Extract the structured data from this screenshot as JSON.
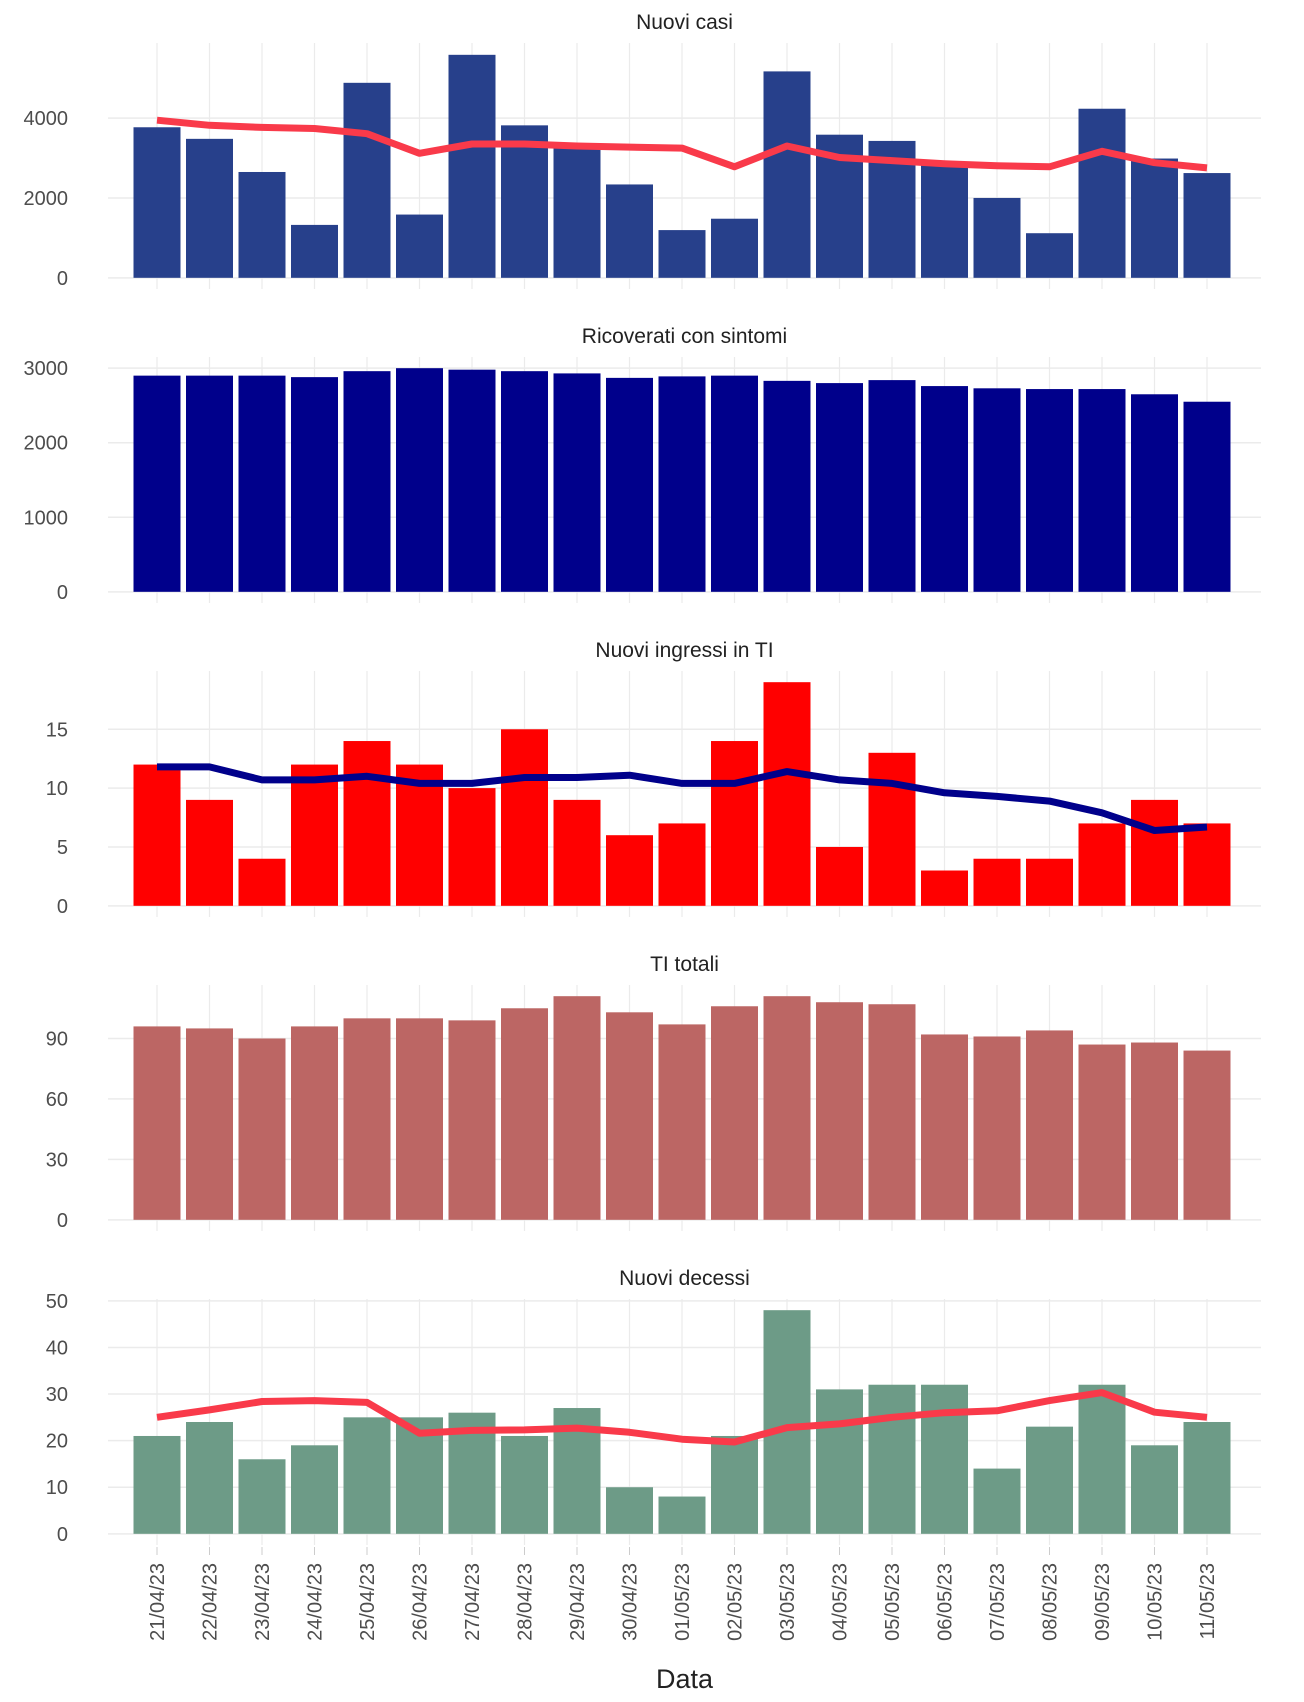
{
  "chart_data": [
    {
      "type": "bar",
      "title": "Nuovi casi",
      "color": "#27408b",
      "values": [
        3770,
        3480,
        2650,
        1325,
        4883,
        1584,
        5584,
        3818,
        3300,
        2338,
        1195,
        1480,
        5169,
        3584,
        3428,
        2857,
        2000,
        1117,
        4234,
        2987,
        2623
      ],
      "line": {
        "color": "#f93a4a",
        "values": [
          3948,
          3818,
          3766,
          3740,
          3610,
          3117,
          3350,
          3350,
          3300,
          3273,
          3247,
          2779,
          3300,
          3013,
          2935,
          2857,
          2805,
          2779,
          3169,
          2883,
          2753
        ]
      },
      "ylim": [
        -280,
        5880
      ],
      "yticks": [
        0,
        2000,
        4000
      ],
      "grid": true
    },
    {
      "type": "bar",
      "title": "Ricoverati con sintomi",
      "color": "#00008b",
      "values": [
        2900,
        2900,
        2900,
        2880,
        2960,
        3000,
        2980,
        2960,
        2930,
        2870,
        2890,
        2900,
        2830,
        2800,
        2840,
        2760,
        2730,
        2720,
        2720,
        2650,
        2550
      ],
      "ylim": [
        -150,
        3150
      ],
      "yticks": [
        0,
        1000,
        2000,
        3000
      ],
      "grid": true
    },
    {
      "type": "bar",
      "title": "Nuovi ingressi in TI",
      "color": "#ff0000",
      "values": [
        12,
        9,
        4,
        12,
        14,
        12,
        10,
        15,
        9,
        6,
        7,
        14,
        19,
        5,
        13,
        3,
        4,
        4,
        7,
        9,
        7
      ],
      "line": {
        "color": "#00008b",
        "values": [
          11.8,
          11.8,
          10.7,
          10.7,
          11,
          10.4,
          10.4,
          10.9,
          10.9,
          11.1,
          10.4,
          10.4,
          11.4,
          10.7,
          10.4,
          9.6,
          9.3,
          8.9,
          7.9,
          6.4,
          6.7
        ]
      },
      "ylim": [
        -0.95,
        19.95
      ],
      "yticks": [
        0,
        5,
        10,
        15
      ],
      "grid": true
    },
    {
      "type": "bar",
      "title": "TI totali",
      "color": "#bc6664",
      "values": [
        96,
        95,
        90,
        96,
        100,
        100,
        99,
        105,
        111,
        103,
        97,
        106,
        111,
        108,
        107,
        92,
        91,
        94,
        87,
        88,
        84
      ],
      "ylim": [
        -5.55,
        116.55
      ],
      "yticks": [
        0,
        30,
        60,
        90
      ],
      "grid": true
    },
    {
      "type": "bar",
      "title": "Nuovi decessi",
      "color": "#6d9b87",
      "x_label": "Data",
      "categories": [
        "21/04/23",
        "22/04/23",
        "23/04/23",
        "24/04/23",
        "25/04/23",
        "26/04/23",
        "27/04/23",
        "28/04/23",
        "29/04/23",
        "30/04/23",
        "01/05/23",
        "02/05/23",
        "03/05/23",
        "04/05/23",
        "05/05/23",
        "06/05/23",
        "07/05/23",
        "08/05/23",
        "09/05/23",
        "10/05/23",
        "11/05/23"
      ],
      "values": [
        21,
        24,
        16,
        19,
        25,
        25,
        26,
        21,
        27,
        10,
        8,
        21,
        48,
        31,
        32,
        32,
        14,
        23,
        32,
        19,
        24
      ],
      "line": {
        "color": "#f93a4a",
        "values": [
          25,
          26.6,
          28.4,
          28.6,
          28.2,
          21.6,
          22.2,
          22.3,
          22.7,
          21.8,
          20.3,
          19.7,
          22.8,
          23.6,
          25,
          26,
          26.4,
          28.6,
          30.3,
          26.1,
          25
        ]
      },
      "ylim": [
        -2.4,
        50.4
      ],
      "yticks": [
        0,
        10,
        20,
        30,
        40,
        50
      ],
      "grid": true
    }
  ]
}
